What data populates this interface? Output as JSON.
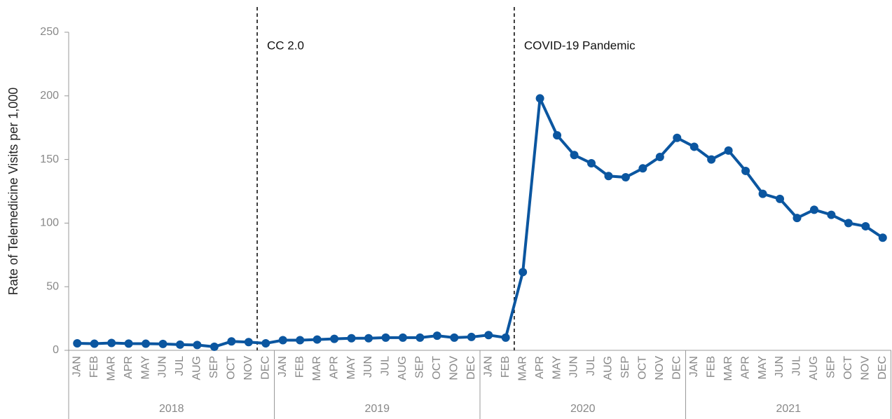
{
  "chart_data": {
    "type": "line",
    "y_label": "Rate of Telemedicine Visits per 1,000",
    "categories": [
      "JAN",
      "FEB",
      "MAR",
      "APR",
      "MAY",
      "JUN",
      "JUL",
      "AUG",
      "SEP",
      "OCT",
      "NOV",
      "DEC",
      "JAN",
      "FEB",
      "MAR",
      "APR",
      "MAY",
      "JUN",
      "JUL",
      "AUG",
      "SEP",
      "OCT",
      "NOV",
      "DEC",
      "JAN",
      "FEB",
      "MAR",
      "APR",
      "MAY",
      "JUN",
      "JUL",
      "AUG",
      "SEP",
      "OCT",
      "NOV",
      "DEC",
      "JAN",
      "FEB",
      "MAR",
      "APR",
      "MAY",
      "JUN",
      "JUL",
      "AUG",
      "SEP",
      "OCT",
      "NOV",
      "DEC"
    ],
    "groups": [
      "2018",
      "2019",
      "2020",
      "2021"
    ],
    "series": [
      {
        "name": "Telemedicine visits",
        "color": "#0b56a0",
        "values": [
          5.5,
          5.2,
          5.8,
          5.3,
          5.2,
          5.0,
          4.5,
          4.2,
          2.8,
          7.0,
          6.5,
          5.5,
          8,
          8,
          8.5,
          9,
          9.5,
          9.5,
          10,
          10,
          10,
          11.5,
          10,
          10.5,
          12,
          10,
          61.5,
          198,
          169,
          153.5,
          147,
          137,
          136,
          143,
          152,
          167,
          160,
          150,
          157,
          141,
          123,
          119,
          104,
          110.5,
          106.5,
          100,
          97.5,
          88.5
        ]
      }
    ],
    "annotations": [
      "CC 2.0",
      "COVID-19 Pandemic"
    ],
    "ylim": [
      0,
      250
    ],
    "yticks": [
      0,
      50,
      100,
      150,
      200,
      250
    ],
    "grid": false
  }
}
